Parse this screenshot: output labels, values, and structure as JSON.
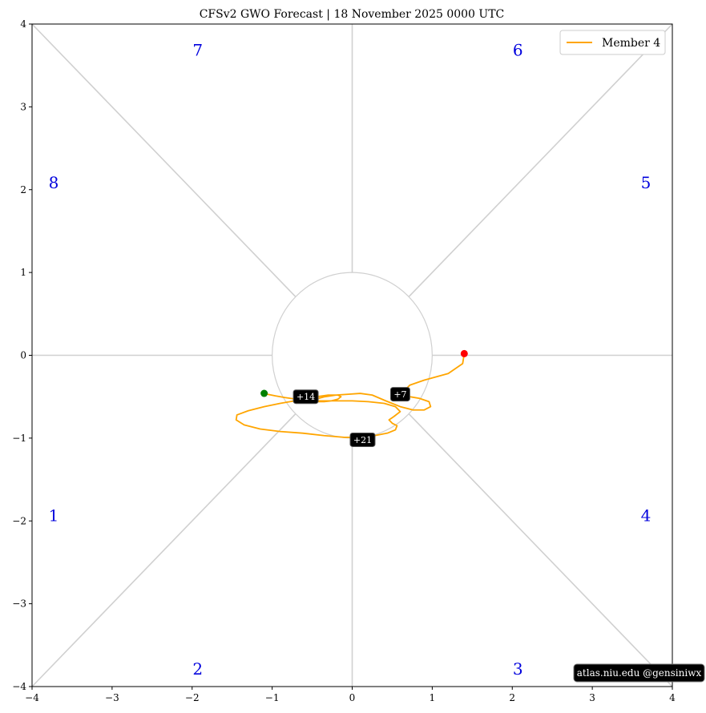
{
  "chart_data": {
    "type": "line",
    "title": "CFSv2 GWO Forecast   |   18  November  2025 0000 UTC",
    "xlim": [
      -4,
      4
    ],
    "ylim": [
      -4,
      4
    ],
    "xticks": [
      -4,
      -3,
      -2,
      -1,
      0,
      1,
      2,
      3,
      4
    ],
    "yticks": [
      -4,
      -3,
      -2,
      -1,
      0,
      1,
      2,
      3,
      4
    ],
    "xtick_labels": [
      "−4",
      "−3",
      "−2",
      "−1",
      "0",
      "1",
      "2",
      "3",
      "4"
    ],
    "ytick_labels": [
      "−4",
      "−3",
      "−2",
      "−1",
      "0",
      "1",
      "2",
      "3",
      "4"
    ],
    "grid": false,
    "unit_circle_radius": 1,
    "phases": [
      {
        "label": "1",
        "x": -3.73,
        "y": -1.95
      },
      {
        "label": "2",
        "x": -1.93,
        "y": -3.8
      },
      {
        "label": "3",
        "x": 2.07,
        "y": -3.8
      },
      {
        "label": "4",
        "x": 3.67,
        "y": -1.95
      },
      {
        "label": "5",
        "x": 3.67,
        "y": 2.07
      },
      {
        "label": "6",
        "x": 2.07,
        "y": 3.67
      },
      {
        "label": "7",
        "x": -1.93,
        "y": 3.67
      },
      {
        "label": "8",
        "x": -3.73,
        "y": 2.07
      }
    ],
    "series": [
      {
        "name": "Member 4",
        "color": "#ffa500",
        "x": [
          1.4,
          1.38,
          1.2,
          0.9,
          0.72,
          0.66,
          0.64,
          0.66,
          0.72,
          0.84,
          0.96,
          0.98,
          0.9,
          0.76,
          0.6,
          0.42,
          0.25,
          0.1,
          -0.05,
          -0.2,
          -0.34,
          -0.42,
          -0.45,
          -0.42,
          -0.35,
          -0.26,
          -0.18,
          -0.14,
          -0.18,
          -0.3,
          -0.44,
          -0.58,
          -0.72,
          -0.9,
          -1.1,
          -1.3,
          -1.44,
          -1.45,
          -1.35,
          -1.15,
          -0.9,
          -0.62,
          -0.35,
          -0.1,
          0.1,
          0.28,
          0.44,
          0.54,
          0.56,
          0.5,
          0.46,
          0.52,
          0.6,
          0.54,
          0.4,
          0.2,
          0.0,
          -0.2,
          -0.4,
          -0.56,
          -0.7,
          -0.84,
          -0.96,
          -1.06,
          -1.1
        ],
        "y": [
          0.02,
          -0.1,
          -0.22,
          -0.3,
          -0.36,
          -0.42,
          -0.46,
          -0.48,
          -0.5,
          -0.52,
          -0.56,
          -0.62,
          -0.66,
          -0.66,
          -0.62,
          -0.55,
          -0.48,
          -0.46,
          -0.47,
          -0.48,
          -0.5,
          -0.52,
          -0.54,
          -0.56,
          -0.56,
          -0.55,
          -0.53,
          -0.5,
          -0.48,
          -0.48,
          -0.5,
          -0.52,
          -0.55,
          -0.58,
          -0.62,
          -0.67,
          -0.72,
          -0.78,
          -0.84,
          -0.89,
          -0.92,
          -0.94,
          -0.97,
          -0.99,
          -0.99,
          -0.97,
          -0.94,
          -0.9,
          -0.85,
          -0.82,
          -0.78,
          -0.74,
          -0.68,
          -0.62,
          -0.58,
          -0.56,
          -0.55,
          -0.55,
          -0.55,
          -0.54,
          -0.53,
          -0.51,
          -0.49,
          -0.47,
          -0.46
        ]
      }
    ],
    "start_point": {
      "x": 1.4,
      "y": 0.02,
      "color": "#ff0000"
    },
    "end_point": {
      "x": -1.1,
      "y": -0.46,
      "color": "#008000"
    },
    "day_markers": [
      {
        "label": "+7",
        "x": 0.6,
        "y": -0.47
      },
      {
        "label": "+14",
        "x": -0.58,
        "y": -0.5
      },
      {
        "label": "+21",
        "x": 0.13,
        "y": -1.02
      }
    ],
    "legend": {
      "position": "top-right",
      "entries": [
        "Member 4"
      ]
    },
    "credit": "atlas.niu.edu  @gensiniwx",
    "colors": {
      "phase_label": "#0000dd",
      "guide_line": "#d0d0d0",
      "marker_bg": "#000000"
    }
  }
}
